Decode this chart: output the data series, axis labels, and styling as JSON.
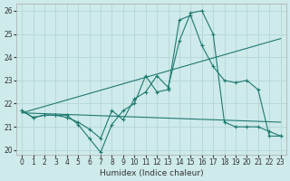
{
  "xlabel": "Humidex (Indice chaleur)",
  "background_color": "#ceeaea",
  "grid_color": "#b8d8d8",
  "line_color": "#1e7a70",
  "xlim": [
    -0.5,
    23.5
  ],
  "ylim": [
    19.8,
    26.3
  ],
  "yticks": [
    20,
    21,
    22,
    23,
    24,
    25,
    26
  ],
  "xticks": [
    0,
    1,
    2,
    3,
    4,
    5,
    6,
    7,
    8,
    9,
    10,
    11,
    12,
    13,
    14,
    15,
    16,
    17,
    18,
    19,
    20,
    21,
    22,
    23
  ],
  "series": [
    {
      "x": [
        0,
        1,
        2,
        3,
        4,
        5,
        6,
        7,
        8,
        9,
        10,
        11,
        12,
        13,
        14,
        15,
        16,
        17,
        18,
        19,
        20,
        21,
        22,
        23
      ],
      "y": [
        21.7,
        21.4,
        21.5,
        21.5,
        21.5,
        21.1,
        20.5,
        19.9,
        21.1,
        21.7,
        22.0,
        23.2,
        22.5,
        22.6,
        25.6,
        25.8,
        24.5,
        23.6,
        23.0,
        22.9,
        23.0,
        22.6,
        20.6,
        20.6
      ],
      "markers": true
    },
    {
      "x": [
        0,
        1,
        2,
        3,
        4,
        5,
        6,
        7,
        8,
        9,
        10,
        11,
        12,
        13,
        14,
        15,
        16,
        17,
        18,
        19,
        20,
        21,
        22,
        23
      ],
      "y": [
        21.7,
        21.4,
        21.5,
        21.5,
        21.4,
        21.2,
        20.9,
        20.5,
        21.7,
        21.3,
        22.2,
        22.5,
        23.2,
        22.7,
        24.7,
        25.9,
        26.0,
        25.0,
        21.2,
        21.0,
        21.0,
        21.0,
        20.8,
        20.6
      ],
      "markers": true
    },
    {
      "x": [
        0,
        23
      ],
      "y": [
        21.6,
        24.8
      ],
      "markers": false
    },
    {
      "x": [
        0,
        23
      ],
      "y": [
        21.6,
        21.2
      ],
      "markers": false
    }
  ]
}
